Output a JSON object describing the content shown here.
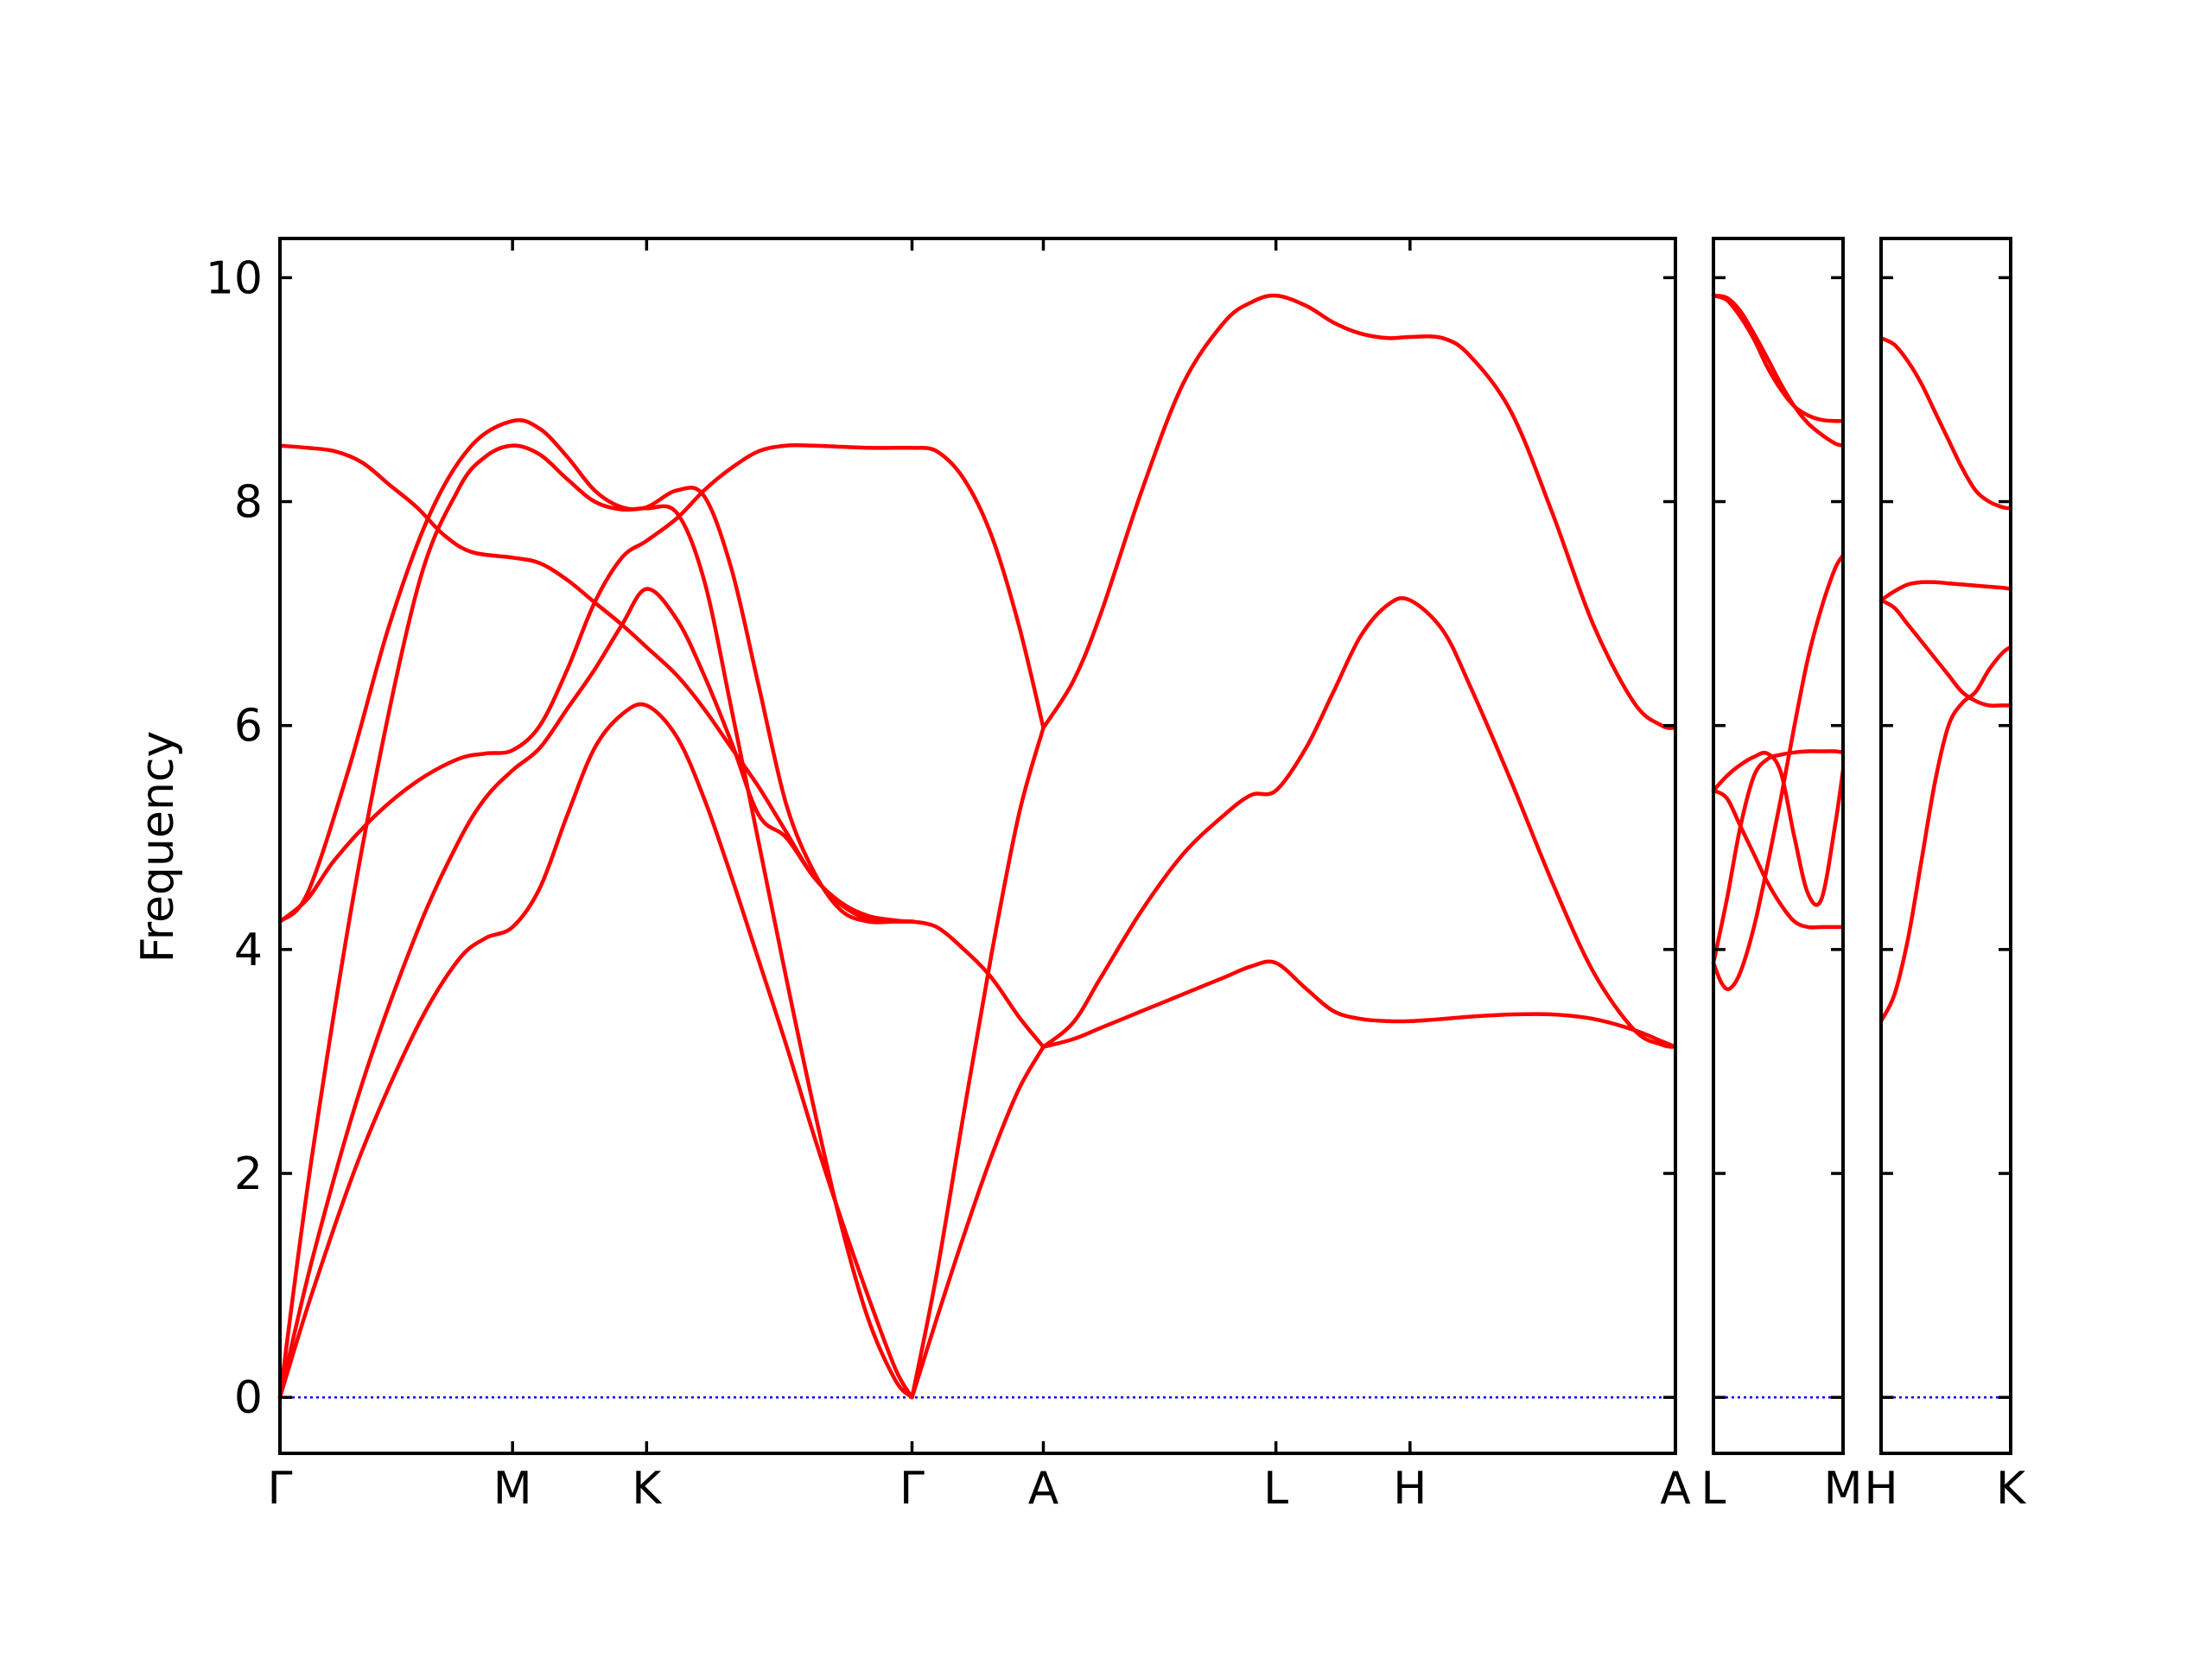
{
  "chart_data": {
    "type": "line",
    "title": "",
    "xlabel": "",
    "ylabel": "Frequency",
    "ylim": [
      -0.5,
      10.35
    ],
    "yticks": [
      0,
      2,
      4,
      6,
      8,
      10
    ],
    "grid": false,
    "legend": "none",
    "colors": {
      "bands": "#ff0000",
      "zero_line": "#0000ff",
      "frame": "#000000"
    },
    "panels": [
      {
        "xrange": [
          0,
          5.1
        ],
        "ticks": [
          {
            "x": 0,
            "label": "Γ"
          },
          {
            "x": 0.85,
            "label": "M"
          },
          {
            "x": 1.34,
            "label": "K"
          },
          {
            "x": 2.31,
            "label": "Γ"
          },
          {
            "x": 2.79,
            "label": "A"
          },
          {
            "x": 3.64,
            "label": "L"
          },
          {
            "x": 4.13,
            "label": "H"
          },
          {
            "x": 5.1,
            "label": "A"
          }
        ],
        "series": [
          {
            "x": [
              0,
              0.12,
              0.3,
              0.5,
              0.65,
              0.75,
              0.85,
              0.95,
              1.05,
              1.15,
              1.25,
              1.34,
              1.45,
              1.55,
              1.65,
              1.75,
              1.85,
              1.95,
              2.05,
              2.15,
              2.25,
              2.31
            ],
            "y": [
              0,
              0.95,
              2.2,
              3.3,
              3.9,
              4.1,
              4.2,
              4.55,
              5.2,
              5.8,
              6.1,
              6.18,
              5.9,
              5.35,
              4.65,
              3.9,
              3.15,
              2.35,
              1.6,
              0.9,
              0.25,
              0
            ]
          },
          {
            "x": [
              0,
              0.12,
              0.3,
              0.5,
              0.65,
              0.75,
              0.85,
              0.95,
              1.05,
              1.15,
              1.25,
              1.34,
              1.45,
              1.55,
              1.65,
              1.75,
              1.85,
              1.95,
              2.05,
              2.15,
              2.25,
              2.31
            ],
            "y": [
              0,
              1.25,
              2.8,
              4.15,
              4.95,
              5.35,
              5.6,
              5.8,
              6.15,
              6.5,
              6.9,
              7.22,
              6.95,
              6.45,
              5.85,
              5.2,
              5.0,
              4.65,
              4.4,
              4.27,
              4.25,
              4.25
            ]
          },
          {
            "x": [
              0,
              0.12,
              0.3,
              0.5,
              0.65,
              0.75,
              0.85,
              0.95,
              1.05,
              1.15,
              1.25,
              1.34,
              1.45,
              1.55,
              1.65,
              1.75,
              1.85,
              1.95,
              2.05,
              2.15,
              2.25,
              2.31
            ],
            "y": [
              0,
              2.2,
              4.9,
              7.2,
              8.1,
              8.4,
              8.5,
              8.42,
              8.2,
              8.0,
              7.93,
              7.94,
              7.9,
              7.3,
              6.15,
              4.95,
              3.75,
              2.6,
              1.55,
              0.7,
              0.15,
              0
            ]
          },
          {
            "x": [
              0,
              0.1,
              0.25,
              0.4,
              0.55,
              0.7,
              0.85,
              0.95,
              1.05,
              1.15,
              1.25,
              1.34,
              1.45,
              1.55,
              1.65,
              1.75,
              1.85,
              1.95,
              2.05,
              2.15,
              2.25,
              2.31
            ],
            "y": [
              4.25,
              4.5,
              5.6,
              6.9,
              7.9,
              8.5,
              8.72,
              8.65,
              8.4,
              8.1,
              7.95,
              7.95,
              8.1,
              8.05,
              7.4,
              6.35,
              5.3,
              4.7,
              4.35,
              4.25,
              4.25,
              4.25
            ]
          },
          {
            "x": [
              0,
              0.1,
              0.2,
              0.35,
              0.5,
              0.65,
              0.75,
              0.85,
              0.95,
              1.05,
              1.15,
              1.25,
              1.34,
              1.45,
              1.55,
              1.65,
              1.75,
              1.85,
              1.95,
              2.05,
              2.15,
              2.25,
              2.31
            ],
            "y": [
              4.25,
              4.45,
              4.8,
              5.2,
              5.5,
              5.7,
              5.75,
              5.78,
              6.0,
              6.5,
              7.1,
              7.5,
              7.65,
              7.85,
              8.1,
              8.3,
              8.45,
              8.5,
              8.5,
              8.49,
              8.48,
              8.48,
              8.48
            ]
          },
          {
            "x": [
              0,
              0.1,
              0.2,
              0.3,
              0.4,
              0.5,
              0.6,
              0.7,
              0.85,
              0.95,
              1.05,
              1.15,
              1.25,
              1.34,
              1.45,
              1.55,
              1.65,
              1.75,
              1.85,
              1.95,
              2.05,
              2.15,
              2.25,
              2.31
            ],
            "y": [
              8.5,
              8.48,
              8.45,
              8.35,
              8.15,
              7.95,
              7.7,
              7.55,
              7.5,
              7.45,
              7.3,
              7.1,
              6.9,
              6.7,
              6.45,
              6.15,
              5.8,
              5.45,
              5.05,
              4.65,
              4.42,
              4.3,
              4.26,
              4.25
            ]
          },
          {
            "x": [
              2.31,
              2.4,
              2.5,
              2.6,
              2.7,
              2.79
            ],
            "y": [
              0,
              0.7,
              1.45,
              2.15,
              2.75,
              3.13
            ]
          },
          {
            "x": [
              2.31,
              2.4,
              2.5,
              2.6,
              2.7,
              2.79
            ],
            "y": [
              4.25,
              4.2,
              4.0,
              3.75,
              3.4,
              3.13
            ]
          },
          {
            "x": [
              2.31,
              2.4,
              2.5,
              2.6,
              2.7,
              2.79
            ],
            "y": [
              0,
              1.1,
              2.55,
              3.95,
              5.2,
              5.98
            ]
          },
          {
            "x": [
              2.31,
              2.4,
              2.5,
              2.6,
              2.7,
              2.79
            ],
            "y": [
              8.48,
              8.45,
              8.2,
              7.7,
              6.9,
              5.98
            ]
          },
          {
            "x": [
              2.79,
              2.9,
              3.0,
              3.15,
              3.3,
              3.45,
              3.55,
              3.64,
              3.75,
              3.85,
              3.95,
              4.05,
              4.13,
              4.25,
              4.35,
              4.5,
              4.65,
              4.8,
              4.95,
              5.05,
              5.1
            ],
            "y": [
              3.13,
              3.2,
              3.3,
              3.45,
              3.6,
              3.75,
              3.85,
              3.88,
              3.65,
              3.45,
              3.38,
              3.36,
              3.36,
              3.38,
              3.4,
              3.42,
              3.42,
              3.38,
              3.28,
              3.18,
              3.13
            ]
          },
          {
            "x": [
              2.79,
              2.9,
              3.0,
              3.15,
              3.3,
              3.45,
              3.55,
              3.64,
              3.75,
              3.85,
              3.95,
              4.05,
              4.13,
              4.25,
              4.35,
              4.5,
              4.65,
              4.8,
              4.95,
              5.05,
              5.1
            ],
            "y": [
              3.13,
              3.35,
              3.75,
              4.35,
              4.85,
              5.2,
              5.38,
              5.42,
              5.8,
              6.3,
              6.8,
              7.08,
              7.12,
              6.85,
              6.35,
              5.5,
              4.6,
              3.8,
              3.28,
              3.15,
              3.13
            ]
          },
          {
            "x": [
              2.79,
              2.9,
              3.0,
              3.15,
              3.3,
              3.45,
              3.55,
              3.64,
              3.75,
              3.85,
              3.95,
              4.05,
              4.13,
              4.25,
              4.35,
              4.5,
              4.65,
              4.8,
              4.95,
              5.05,
              5.1
            ],
            "y": [
              5.98,
              6.4,
              7.0,
              8.1,
              9.05,
              9.6,
              9.78,
              9.84,
              9.75,
              9.6,
              9.5,
              9.46,
              9.47,
              9.46,
              9.3,
              8.8,
              7.9,
              6.9,
              6.2,
              6.0,
              5.98
            ]
          }
        ]
      },
      {
        "xrange": [
          0,
          0.48
        ],
        "ticks": [
          {
            "x": 0,
            "label": "L"
          },
          {
            "x": 0.48,
            "label": "M"
          }
        ],
        "series": [
          {
            "x": [
              0,
              0.05,
              0.1,
              0.15,
              0.2,
              0.25,
              0.3,
              0.35,
              0.4,
              0.45,
              0.48
            ],
            "y": [
              9.84,
              9.82,
              9.7,
              9.5,
              9.28,
              9.05,
              8.85,
              8.7,
              8.6,
              8.52,
              8.5
            ]
          },
          {
            "x": [
              0,
              0.05,
              0.1,
              0.15,
              0.2,
              0.25,
              0.3,
              0.35,
              0.4,
              0.45,
              0.48
            ],
            "y": [
              9.84,
              9.8,
              9.65,
              9.45,
              9.2,
              9.0,
              8.85,
              8.77,
              8.73,
              8.72,
              8.72
            ]
          },
          {
            "x": [
              0,
              0.05,
              0.1,
              0.15,
              0.2,
              0.25,
              0.3,
              0.35,
              0.4,
              0.45,
              0.48
            ],
            "y": [
              3.88,
              4.45,
              5.1,
              5.55,
              5.7,
              5.74,
              5.76,
              5.77,
              5.77,
              5.77,
              5.76
            ]
          },
          {
            "x": [
              0,
              0.05,
              0.1,
              0.15,
              0.2,
              0.25,
              0.3,
              0.35,
              0.4,
              0.45,
              0.48
            ],
            "y": [
              5.42,
              5.35,
              5.1,
              4.85,
              4.6,
              4.4,
              4.25,
              4.2,
              4.2,
              4.2,
              4.2
            ]
          },
          {
            "x": [
              0,
              0.03,
              0.06,
              0.1,
              0.15,
              0.2,
              0.25,
              0.3,
              0.35,
              0.4,
              0.45,
              0.48
            ],
            "y": [
              3.88,
              3.7,
              3.65,
              3.8,
              4.2,
              4.75,
              5.35,
              6.0,
              6.6,
              7.05,
              7.4,
              7.52
            ]
          },
          {
            "x": [
              0,
              0.05,
              0.1,
              0.15,
              0.2,
              0.25,
              0.3,
              0.35,
              0.4,
              0.45,
              0.48
            ],
            "y": [
              5.42,
              5.55,
              5.65,
              5.72,
              5.75,
              5.58,
              5.0,
              4.5,
              4.45,
              5.1,
              5.6
            ]
          }
        ]
      },
      {
        "xrange": [
          0,
          0.48
        ],
        "ticks": [
          {
            "x": 0,
            "label": "H"
          },
          {
            "x": 0.48,
            "label": "K"
          }
        ],
        "series": [
          {
            "x": [
              0,
              0.05,
              0.1,
              0.15,
              0.2,
              0.25,
              0.3,
              0.35,
              0.4,
              0.45,
              0.48
            ],
            "y": [
              9.46,
              9.4,
              9.25,
              9.05,
              8.8,
              8.55,
              8.3,
              8.1,
              8.0,
              7.95,
              7.94
            ]
          },
          {
            "x": [
              0,
              0.05,
              0.1,
              0.15,
              0.2,
              0.25,
              0.3,
              0.35,
              0.4,
              0.45,
              0.48
            ],
            "y": [
              7.12,
              7.2,
              7.26,
              7.28,
              7.28,
              7.27,
              7.26,
              7.25,
              7.24,
              7.23,
              7.22
            ]
          },
          {
            "x": [
              0,
              0.05,
              0.1,
              0.15,
              0.2,
              0.25,
              0.3,
              0.35,
              0.4,
              0.45,
              0.48
            ],
            "y": [
              7.12,
              7.05,
              6.9,
              6.75,
              6.6,
              6.45,
              6.3,
              6.22,
              6.18,
              6.18,
              6.18
            ]
          },
          {
            "x": [
              0,
              0.05,
              0.1,
              0.15,
              0.2,
              0.25,
              0.3,
              0.35,
              0.4,
              0.45,
              0.48
            ],
            "y": [
              3.36,
              3.6,
              4.1,
              4.8,
              5.5,
              6.0,
              6.2,
              6.3,
              6.5,
              6.65,
              6.7
            ]
          }
        ]
      }
    ]
  }
}
